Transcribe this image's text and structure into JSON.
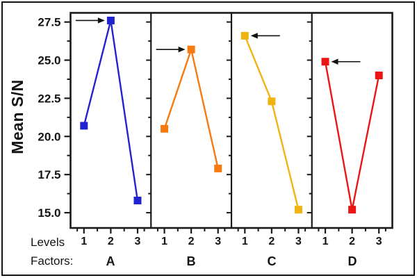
{
  "chart_data": {
    "type": "line",
    "title": "",
    "ylabel": "Mean S/N",
    "xlabel_levels": "Levels",
    "xlabel_factors": "Factors:",
    "levels": [
      "1",
      "2",
      "3"
    ],
    "yticks": [
      "27.5",
      "25.0",
      "22.5",
      "20.0",
      "17.5",
      "15.0"
    ],
    "ytick_values": [
      27.5,
      25.0,
      22.5,
      20.0,
      17.5,
      15.0
    ],
    "minor_ytick_values": [
      26.25,
      23.75,
      21.25,
      18.75,
      16.25
    ],
    "ylim": [
      14.0,
      28.1
    ],
    "grid": false,
    "legend": "none",
    "series": [
      {
        "name": "A",
        "color": "#2222cf",
        "values": [
          20.7,
          27.6,
          15.8
        ],
        "best_level": 2
      },
      {
        "name": "B",
        "color": "#f67a0d",
        "values": [
          20.5,
          25.7,
          17.9
        ],
        "best_level": 2
      },
      {
        "name": "C",
        "color": "#f0b312",
        "values": [
          26.6,
          22.3,
          15.2
        ],
        "best_level": 1
      },
      {
        "name": "D",
        "color": "#ec1515",
        "values": [
          24.9,
          15.2,
          24.0
        ],
        "best_level": 1
      }
    ],
    "annotations": [
      {
        "series": "A",
        "level": 2,
        "arrow_from": "left"
      },
      {
        "series": "B",
        "level": 2,
        "arrow_from": "left"
      },
      {
        "series": "C",
        "level": 1,
        "arrow_from": "right"
      },
      {
        "series": "D",
        "level": 1,
        "arrow_from": "right"
      }
    ],
    "axis_color": "#1a1a1a",
    "arrow_color": "#111111"
  }
}
